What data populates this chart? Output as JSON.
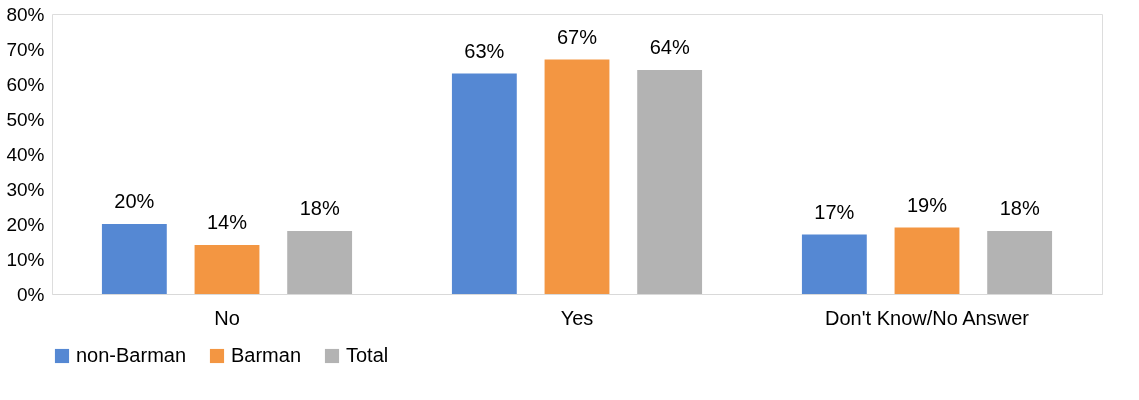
{
  "chart_data": {
    "type": "bar",
    "categories": [
      "No",
      "Yes",
      "Don't Know/No Answer"
    ],
    "series": [
      {
        "name": "non-Barman",
        "color": "#5588d3",
        "values": [
          20,
          63,
          17
        ],
        "value_labels": [
          "20%",
          "63%",
          "17%"
        ]
      },
      {
        "name": "Barman",
        "color": "#f39642",
        "values": [
          14,
          67,
          19
        ],
        "value_labels": [
          "14%",
          "67%",
          "19%"
        ]
      },
      {
        "name": "Total",
        "color": "#b3b3b3",
        "values": [
          18,
          64,
          18
        ],
        "value_labels": [
          "18%",
          "64%",
          "18%"
        ]
      }
    ],
    "ylim": [
      0,
      80
    ],
    "yticks": [
      {
        "value": 0,
        "label": "0%"
      },
      {
        "value": 10,
        "label": "10%"
      },
      {
        "value": 20,
        "label": "20%"
      },
      {
        "value": 30,
        "label": "30%"
      },
      {
        "value": 40,
        "label": "40%"
      },
      {
        "value": 50,
        "label": "50%"
      },
      {
        "value": 60,
        "label": "60%"
      },
      {
        "value": 70,
        "label": "70%"
      },
      {
        "value": 80,
        "label": "80%"
      }
    ],
    "grid": false,
    "legend": "bottom"
  }
}
